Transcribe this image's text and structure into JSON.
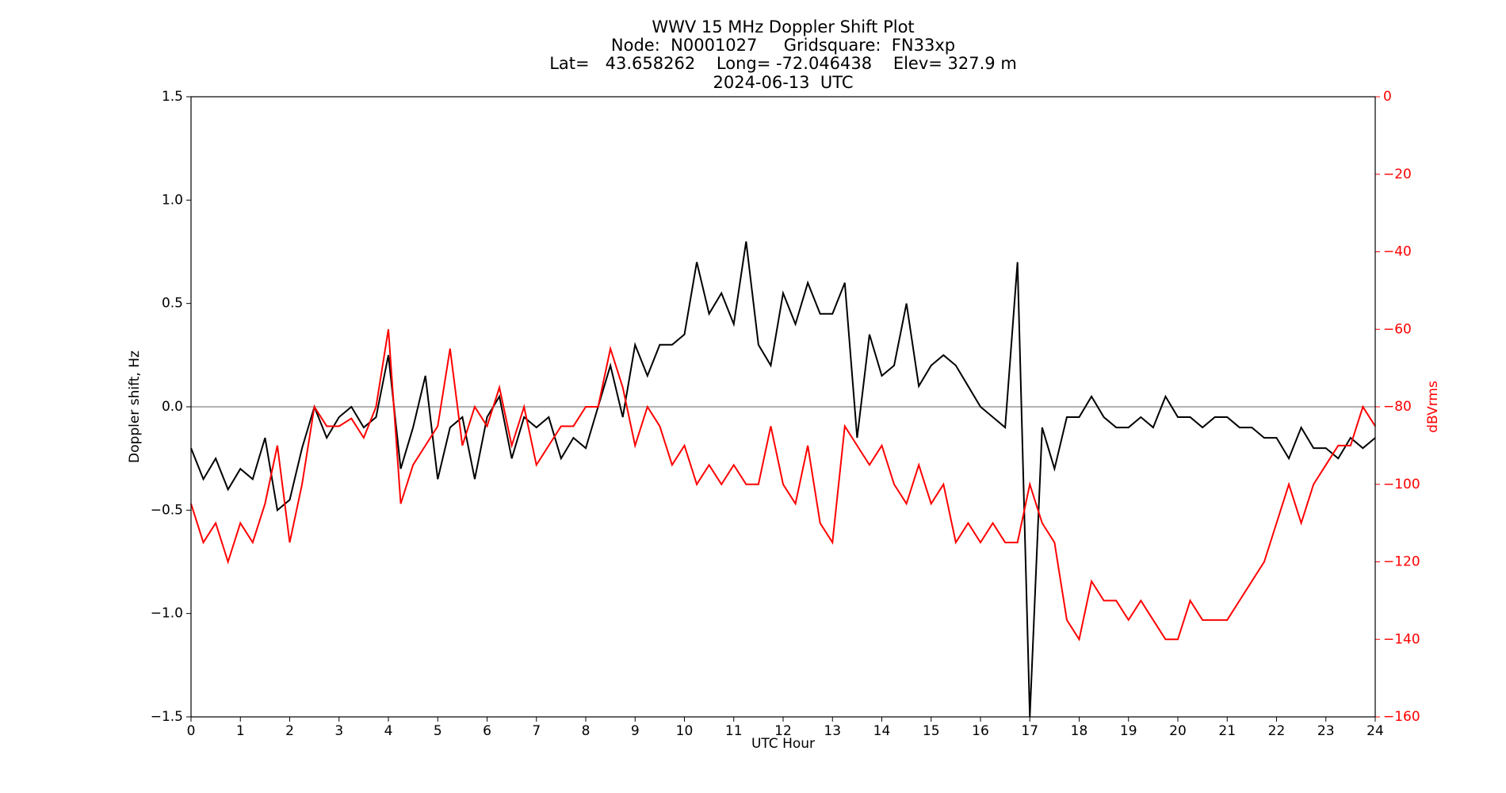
{
  "chart_data": {
    "type": "line",
    "title": [
      "WWV 15 MHz Doppler Shift Plot",
      "Node:  N0001027     Gridsquare:  FN33xp",
      "Lat=   43.658262    Long= -72.046438    Elev= 327.9 m",
      "2024-06-13  UTC"
    ],
    "xlabel": "UTC Hour",
    "ylabel": "Doppler shift, Hz",
    "y2label": "dBVrms",
    "y2color": "#ff0000",
    "x": [
      0,
      0.25,
      0.5,
      0.75,
      1,
      1.25,
      1.5,
      1.75,
      2,
      2.25,
      2.5,
      2.75,
      3,
      3.25,
      3.5,
      3.75,
      4,
      4.25,
      4.5,
      4.75,
      5,
      5.25,
      5.5,
      5.75,
      6,
      6.25,
      6.5,
      6.75,
      7,
      7.25,
      7.5,
      7.75,
      8,
      8.25,
      8.5,
      8.75,
      9,
      9.25,
      9.5,
      9.75,
      10,
      10.25,
      10.5,
      10.75,
      11,
      11.25,
      11.5,
      11.75,
      12,
      12.25,
      12.5,
      12.75,
      13,
      13.25,
      13.5,
      13.75,
      14,
      14.25,
      14.5,
      14.75,
      15,
      15.25,
      15.5,
      15.75,
      16,
      16.25,
      16.5,
      16.75,
      17,
      17.25,
      17.5,
      17.75,
      18,
      18.25,
      18.5,
      18.75,
      19,
      19.25,
      19.5,
      19.75,
      20,
      20.25,
      20.5,
      20.75,
      21,
      21.25,
      21.5,
      21.75,
      22,
      22.25,
      22.5,
      22.75,
      23,
      23.25,
      23.5,
      23.75,
      24
    ],
    "series": [
      {
        "color": "#000000",
        "values": [
          -0.2,
          -0.35,
          -0.25,
          -0.4,
          -0.3,
          -0.35,
          -0.15,
          -0.5,
          -0.45,
          -0.2,
          0.0,
          -0.15,
          -0.05,
          0.0,
          -0.1,
          -0.05,
          0.25,
          -0.3,
          -0.1,
          0.15,
          -0.35,
          -0.1,
          -0.05,
          -0.35,
          -0.05,
          0.05,
          -0.25,
          -0.05,
          -0.1,
          -0.05,
          -0.25,
          -0.15,
          -0.2,
          0.0,
          0.2,
          -0.05,
          0.3,
          0.15,
          0.3,
          0.3,
          0.35,
          0.7,
          0.45,
          0.55,
          0.4,
          0.8,
          0.3,
          0.2,
          0.55,
          0.4,
          0.6,
          0.45,
          0.45,
          0.6,
          -0.15,
          0.35,
          0.15,
          0.2,
          0.5,
          0.1,
          0.2,
          0.25,
          0.2,
          0.1,
          0.0,
          -0.05,
          -0.1,
          0.7,
          -1.5,
          -0.1,
          -0.3,
          -0.05,
          -0.05,
          0.05,
          -0.05,
          -0.1,
          -0.1,
          -0.05,
          -0.1,
          0.05,
          -0.05,
          -0.05,
          -0.1,
          -0.05,
          -0.05,
          -0.1,
          -0.1,
          -0.15,
          -0.15,
          -0.25,
          -0.1,
          -0.2,
          -0.2,
          -0.25,
          -0.15,
          -0.2,
          -0.15
        ]
      },
      {
        "color": "#ff0000",
        "axis": "y2",
        "values": [
          -105,
          -115,
          -110,
          -120,
          -110,
          -115,
          -105,
          -90,
          -115,
          -100,
          -80,
          -85,
          -85,
          -83,
          -88,
          -80,
          -60,
          -105,
          -95,
          -90,
          -85,
          -65,
          -90,
          -80,
          -85,
          -75,
          -90,
          -80,
          -95,
          -90,
          -85,
          -85,
          -80,
          -80,
          -65,
          -75,
          -90,
          -80,
          -85,
          -95,
          -90,
          -100,
          -95,
          -100,
          -95,
          -100,
          -100,
          -85,
          -100,
          -105,
          -90,
          -110,
          -115,
          -85,
          -90,
          -95,
          -90,
          -100,
          -105,
          -95,
          -105,
          -100,
          -115,
          -110,
          -115,
          -110,
          -115,
          -115,
          -100,
          -110,
          -115,
          -135,
          -140,
          -125,
          -130,
          -130,
          -135,
          -130,
          -135,
          -140,
          -140,
          -130,
          -135,
          -135,
          -135,
          -130,
          -125,
          -120,
          -110,
          -100,
          -110,
          -100,
          -95,
          -90,
          -90,
          -80,
          -85
        ]
      }
    ],
    "xlim": [
      0,
      24
    ],
    "xticks": [
      0,
      1,
      2,
      3,
      4,
      5,
      6,
      7,
      8,
      9,
      10,
      11,
      12,
      13,
      14,
      15,
      16,
      17,
      18,
      19,
      20,
      21,
      22,
      23,
      24
    ],
    "ylim": [
      -1.5,
      1.5
    ],
    "yticks": [
      {
        "value": -1.5,
        "label": "−1.5"
      },
      {
        "value": -1.0,
        "label": "−1.0"
      },
      {
        "value": -0.5,
        "label": "−0.5"
      },
      {
        "value": 0,
        "label": "0.0"
      },
      {
        "value": 0.5,
        "label": "0.5"
      },
      {
        "value": 1.0,
        "label": "1.0"
      },
      {
        "value": 1.5,
        "label": "1.5"
      }
    ],
    "y2lim": [
      -160,
      0
    ],
    "y2ticks": [
      {
        "value": -160,
        "label": "−160"
      },
      {
        "value": -140,
        "label": "−140"
      },
      {
        "value": -120,
        "label": "−120"
      },
      {
        "value": -100,
        "label": "−100"
      },
      {
        "value": -80,
        "label": "−80"
      },
      {
        "value": -60,
        "label": "−60"
      },
      {
        "value": -40,
        "label": "−40"
      },
      {
        "value": -20,
        "label": "−20"
      },
      0
    ],
    "zero_line": 0
  }
}
